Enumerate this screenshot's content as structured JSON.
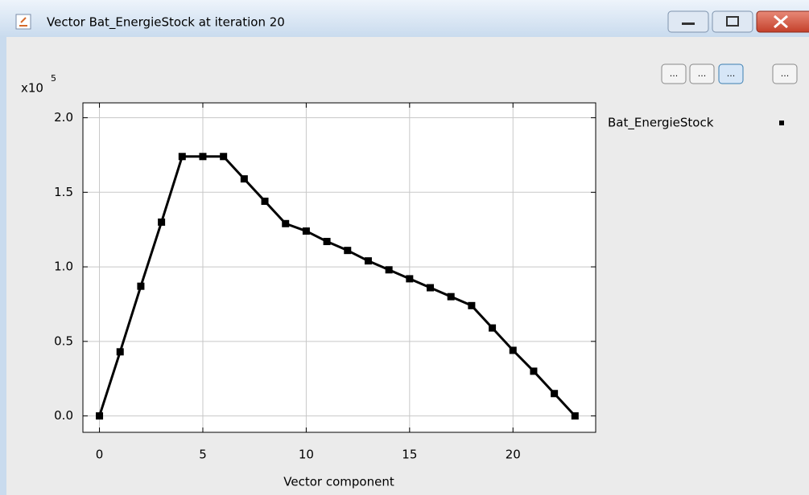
{
  "window": {
    "title": "Vector Bat_EnergieStock at iteration 20",
    "toolbar_buttons": [
      "...",
      "...",
      "...",
      "..."
    ]
  },
  "chart_data": {
    "type": "line",
    "y_multiplier": {
      "base": "x10",
      "exponent": "5"
    },
    "xlabel": "Vector component",
    "x": [
      0,
      1,
      2,
      3,
      4,
      5,
      6,
      7,
      8,
      9,
      10,
      11,
      12,
      13,
      14,
      15,
      16,
      17,
      18,
      19,
      20,
      21,
      22,
      23
    ],
    "series": [
      {
        "name": "Bat_EnergieStock",
        "color": "#000000",
        "values": [
          0,
          0.43,
          0.87,
          1.3,
          1.74,
          1.74,
          1.74,
          1.59,
          1.44,
          1.29,
          1.24,
          1.17,
          1.11,
          1.04,
          0.98,
          0.92,
          0.86,
          0.8,
          0.74,
          0.59,
          0.44,
          0.3,
          0.15,
          0
        ]
      }
    ],
    "xlim": [
      -0.8,
      24
    ],
    "xticks": [
      0,
      5,
      10,
      15,
      20
    ],
    "ylim": [
      -0.11,
      2.1
    ],
    "yticks": [
      {
        "value": 0,
        "label": "0.0"
      },
      0.5,
      {
        "value": 1,
        "label": "1.0"
      },
      1.5,
      {
        "value": 2,
        "label": "2.0"
      }
    ],
    "grid": true,
    "legend": "right"
  }
}
